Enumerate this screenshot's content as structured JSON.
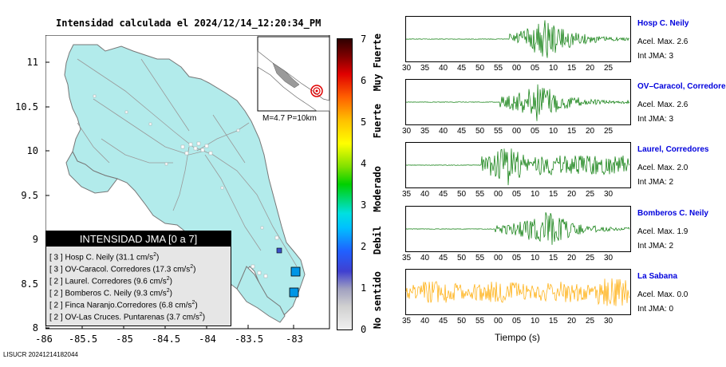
{
  "title": "Intensidad calculada el 2024/12/14_12:20:34_PM",
  "footer": "LISUCR 20241214182044",
  "map": {
    "y_ticks": [
      "11",
      "10.5",
      "10",
      "9.5",
      "9",
      "8.5",
      "8"
    ],
    "x_ticks": [
      "-86",
      "-85.5",
      "-85",
      "-84.5",
      "-84",
      "-83.5",
      "-83"
    ],
    "land_color": "#b2ebeb",
    "inset_label": "M=4.7 P=10km"
  },
  "colorbar": {
    "ticks": [
      "7",
      "6",
      "5",
      "4",
      "3",
      "2",
      "1",
      "0"
    ],
    "labels": [
      "Muy Fuerte",
      "Fuerte",
      "Moderado",
      "Debil",
      "No sentido"
    ]
  },
  "legend": {
    "header": "INTENSIDAD JMA [0 a 7]",
    "rows": [
      {
        "int": "[ 3 ]",
        "text": "Hosp C. Neily",
        "val": "(31.1 cm/s",
        "sup": "2",
        "end": ")"
      },
      {
        "int": "[ 3 ]",
        "text": "OV-Caracol. Corredores",
        "val": "(17.3 cm/s",
        "sup": "2",
        "end": ")"
      },
      {
        "int": "[ 2 ]",
        "text": "Laurel. Corredores",
        "val": "(9.6 cm/s",
        "sup": "2",
        "end": ")"
      },
      {
        "int": "[ 2 ]",
        "text": "Bomberos C. Neily",
        "val": "(9.3 cm/s",
        "sup": "2",
        "end": ")"
      },
      {
        "int": "[ 2 ]",
        "text": "Finca Naranjo.Corredores",
        "val": "(6.8 cm/s",
        "sup": "2",
        "end": ")"
      },
      {
        "int": "[ 2 ]",
        "text": "OV-Las Cruces. Puntarenas",
        "val": "(3.7 cm/s",
        "sup": "2",
        "end": ")"
      }
    ]
  },
  "stations": [
    {
      "name": "Hosp C. Neily",
      "acel": "Acel. Max. 2.6",
      "int": "Int JMA: 3",
      "color": "#007700",
      "ticks": [
        "30",
        "35",
        "40",
        "45",
        "50",
        "55",
        "00",
        "05",
        "10",
        "15",
        "20",
        "25"
      ]
    },
    {
      "name": "OV–Caracol, Corredore",
      "acel": "Acel. Max. 2.6",
      "int": "Int JMA: 3",
      "color": "#007700",
      "ticks": [
        "30",
        "35",
        "40",
        "45",
        "50",
        "55",
        "00",
        "05",
        "10",
        "15",
        "20",
        "25"
      ]
    },
    {
      "name": "Laurel, Corredores",
      "acel": "Acel. Max. 2.0",
      "int": "Int JMA: 2",
      "color": "#007700",
      "ticks": [
        "35",
        "40",
        "45",
        "50",
        "55",
        "00",
        "05",
        "10",
        "15",
        "20",
        "25",
        "30"
      ]
    },
    {
      "name": "Bomberos C. Neily",
      "acel": "Acel. Max. 1.9",
      "int": "Int JMA: 2",
      "color": "#007700",
      "ticks": [
        "35",
        "40",
        "45",
        "50",
        "55",
        "00",
        "05",
        "10",
        "15",
        "20",
        "25",
        "30"
      ]
    },
    {
      "name": "La Sabana",
      "acel": "Acel. Max. 0.0",
      "int": "Int JMA: 0",
      "color": "#ffaa00",
      "ticks": [
        "35",
        "40",
        "45",
        "50",
        "55",
        "00",
        "05",
        "10",
        "15",
        "20",
        "25",
        "30"
      ]
    }
  ],
  "xlabel": "Tiempo (s)"
}
